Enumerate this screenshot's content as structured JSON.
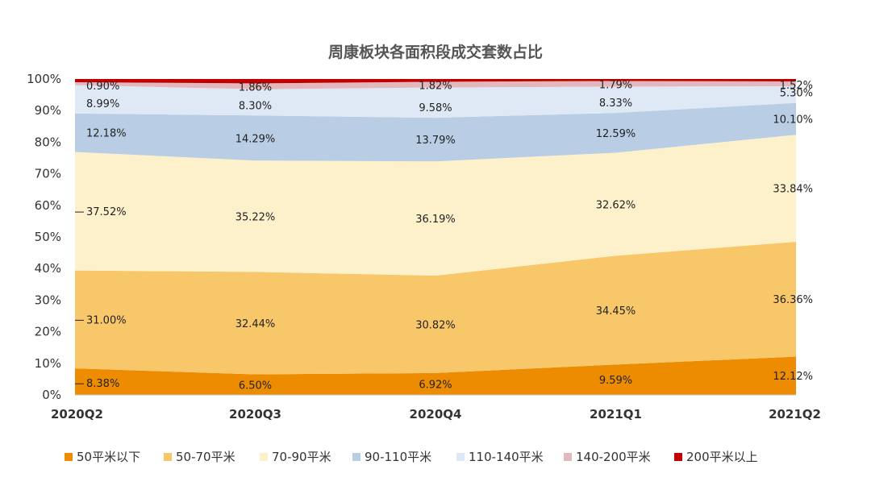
{
  "chart_data": {
    "type": "area",
    "stacked": true,
    "title": "周康板块各面积段成交套数占比",
    "categories": [
      "2020Q2",
      "2020Q3",
      "2020Q4",
      "2021Q1",
      "2021Q2"
    ],
    "ylim": [
      0,
      100
    ],
    "yticks": [
      "0%",
      "10%",
      "20%",
      "30%",
      "40%",
      "50%",
      "60%",
      "70%",
      "80%",
      "90%",
      "100%"
    ],
    "legend_position": "bottom",
    "series": [
      {
        "name": "50平米以下",
        "color": "#ED8C00",
        "values": [
          8.38,
          6.5,
          6.92,
          9.59,
          12.12
        ],
        "labels": [
          "8.38%",
          "6.50%",
          "6.92%",
          "9.59%",
          "12.12%"
        ]
      },
      {
        "name": "50-70平米",
        "color": "#F8C76A",
        "values": [
          31.0,
          32.44,
          30.82,
          34.45,
          36.36
        ],
        "labels": [
          "31.00%",
          "32.44%",
          "30.82%",
          "34.45%",
          "36.36%"
        ]
      },
      {
        "name": "70-90平米",
        "color": "#FDF1CC",
        "values": [
          37.52,
          35.22,
          36.19,
          32.62,
          33.84
        ],
        "labels": [
          "37.52%",
          "35.22%",
          "36.19%",
          "32.62%",
          "33.84%"
        ]
      },
      {
        "name": "90-110平米",
        "color": "#B9CDE4",
        "values": [
          12.18,
          14.29,
          13.79,
          12.59,
          10.1
        ],
        "labels": [
          "12.18%",
          "14.29%",
          "13.79%",
          "12.59%",
          "10.10%"
        ]
      },
      {
        "name": "110-140平米",
        "color": "#DEE9F5",
        "values": [
          8.99,
          8.3,
          9.58,
          8.33,
          5.3
        ],
        "labels": [
          "8.99%",
          "8.30%",
          "9.58%",
          "8.33%",
          "5.30%"
        ]
      },
      {
        "name": "140-200平米",
        "color": "#E3B8BD",
        "values": [
          0.9,
          1.86,
          1.82,
          1.79,
          1.52
        ],
        "labels": [
          "0.90%",
          "1.86%",
          "1.82%",
          "1.79%",
          "1.52%"
        ]
      },
      {
        "name": "200平米以上",
        "color": "#C00000",
        "values": [
          1.03,
          1.39,
          0.88,
          0.63,
          0.76
        ],
        "labels": []
      }
    ]
  }
}
